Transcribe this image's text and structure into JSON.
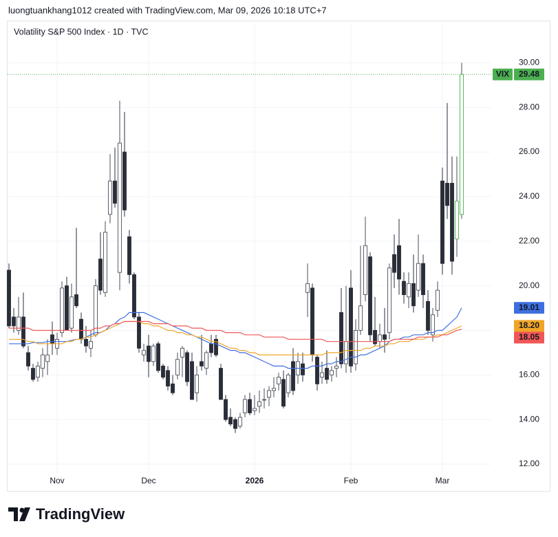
{
  "header": {
    "attribution": "luongtuankhang1012 created with TradingView.com, Mar 09, 2026 10:18 UTC+7"
  },
  "chart_data": {
    "type": "candlestick",
    "title": "Volatility S&P 500 Index · 1D · TVC",
    "categories": [
      null,
      null,
      null,
      null,
      null,
      null,
      null,
      null,
      null,
      null,
      "Nov",
      null,
      null,
      null,
      null,
      null,
      null,
      null,
      null,
      null,
      null,
      null,
      null,
      null,
      null,
      null,
      null,
      null,
      null,
      "Dec",
      null,
      null,
      null,
      null,
      null,
      null,
      null,
      null,
      null,
      null,
      null,
      null,
      null,
      null,
      null,
      null,
      null,
      null,
      null,
      null,
      null,
      "2026",
      null,
      null,
      null,
      null,
      null,
      null,
      null,
      null,
      null,
      null,
      null,
      null,
      null,
      null,
      null,
      null,
      null,
      null,
      null,
      "Feb",
      null,
      null,
      null,
      null,
      null,
      null,
      null,
      null,
      null,
      null,
      null,
      null,
      null,
      null,
      null,
      null,
      null,
      null,
      "Mar",
      null,
      null,
      null,
      null
    ],
    "series": [
      {
        "name": "VIX",
        "up_color": "#ffffff",
        "up_stroke": "#4a4e59",
        "down_color": "#2a2e39",
        "color": "#4caf50",
        "open": [
          20.7,
          18.6,
          18.0,
          18.6,
          17.0,
          16.3,
          15.9,
          16.3,
          16.6,
          17.8,
          17.2,
          17.9,
          20.0,
          18.1,
          19.6,
          18.5,
          17.6,
          17.2,
          17.8,
          21.2,
          19.7,
          23.2,
          24.7,
          20.6,
          26.0,
          22.2,
          20.5,
          18.6,
          16.9,
          17.3,
          16.6,
          17.4,
          16.4,
          16.2,
          15.6,
          16.0,
          16.8,
          17.0,
          16.6,
          15.2,
          16.6,
          16.3,
          17.4,
          17.6,
          16.3,
          14.9,
          14.1,
          14.0,
          13.7,
          14.3,
          14.9,
          14.4,
          14.6,
          14.9,
          15.0,
          15.3,
          15.6,
          15.8,
          15.2,
          16.6,
          16.0,
          16.5,
          19.7,
          19.9,
          16.8,
          15.9,
          16.3,
          16.0,
          16.3,
          18.8,
          16.5,
          19.9,
          16.5,
          18.0,
          19.6,
          21.3,
          18.0,
          17.5,
          17.8,
          17.9,
          21.4,
          21.8,
          20.2,
          19.5,
          20.1,
          19.8,
          21.0,
          19.3,
          17.8,
          18.9,
          24.7,
          24.6,
          24.6,
          22.1,
          23.2
        ],
        "high": [
          21.0,
          19.0,
          19.5,
          19.7,
          17.3,
          16.5,
          16.6,
          17.2,
          17.6,
          18.4,
          17.9,
          20.2,
          20.4,
          20.1,
          22.6,
          18.8,
          18.2,
          18.0,
          20.3,
          22.4,
          22.9,
          25.9,
          26.2,
          28.3,
          27.8,
          22.5,
          20.6,
          18.8,
          17.4,
          17.8,
          17.4,
          17.5,
          16.5,
          16.4,
          16.0,
          17.0,
          17.3,
          17.1,
          17.0,
          16.4,
          17.8,
          17.1,
          17.8,
          17.8,
          16.5,
          15.1,
          14.5,
          14.1,
          14.3,
          15.1,
          15.2,
          15.1,
          15.3,
          15.4,
          15.5,
          15.9,
          16.1,
          16.2,
          16.1,
          17.2,
          17.0,
          17.0,
          21.0,
          20.1,
          16.9,
          16.6,
          17.1,
          16.4,
          16.8,
          19.9,
          20.0,
          20.7,
          18.5,
          21.8,
          23.1,
          21.5,
          19.5,
          18.3,
          19.0,
          21.0,
          22.3,
          23.0,
          20.6,
          20.6,
          21.4,
          22.3,
          21.4,
          19.8,
          19.0,
          20.2,
          25.3,
          28.2,
          25.8,
          25.8,
          30.0
        ],
        "low": [
          18.1,
          17.9,
          17.8,
          17.2,
          16.2,
          15.7,
          15.7,
          15.9,
          16.0,
          16.9,
          16.9,
          17.7,
          18.0,
          17.9,
          19.0,
          17.4,
          17.0,
          16.8,
          17.7,
          19.6,
          19.5,
          22.8,
          23.5,
          19.8,
          23.1,
          20.1,
          18.5,
          17.0,
          16.6,
          15.9,
          16.4,
          16.1,
          15.8,
          15.3,
          15.1,
          15.8,
          15.9,
          15.5,
          14.9,
          14.8,
          16.2,
          16.0,
          16.8,
          16.8,
          14.9,
          13.9,
          13.7,
          13.4,
          13.6,
          14.1,
          14.2,
          14.2,
          14.3,
          14.5,
          14.6,
          15.0,
          15.3,
          14.5,
          15.0,
          15.1,
          15.6,
          15.7,
          18.6,
          16.6,
          15.3,
          15.6,
          15.6,
          15.7,
          15.9,
          16.3,
          16.1,
          16.1,
          16.2,
          17.8,
          19.3,
          17.5,
          17.3,
          17.2,
          17.0,
          17.6,
          19.9,
          19.6,
          19.2,
          19.0,
          18.8,
          19.5,
          19.0,
          17.8,
          17.5,
          18.6,
          20.5,
          23.0,
          20.5,
          21.3,
          23.0
        ],
        "close": [
          18.2,
          18.2,
          18.6,
          17.3,
          16.4,
          15.8,
          16.4,
          16.9,
          16.9,
          17.4,
          17.6,
          19.9,
          18.0,
          19.5,
          19.1,
          17.6,
          17.3,
          17.5,
          20.0,
          19.8,
          22.4,
          24.7,
          23.7,
          26.4,
          23.4,
          20.5,
          18.6,
          17.2,
          17.1,
          16.6,
          17.3,
          16.2,
          15.9,
          15.5,
          15.2,
          16.7,
          17.2,
          15.7,
          14.9,
          16.0,
          16.4,
          17.0,
          17.0,
          16.9,
          14.9,
          14.0,
          13.8,
          13.6,
          14.1,
          14.9,
          14.3,
          14.5,
          14.8,
          14.9,
          15.3,
          15.4,
          15.9,
          14.6,
          16.0,
          15.3,
          16.6,
          16.0,
          20.1,
          16.9,
          15.6,
          16.1,
          15.8,
          16.2,
          16.4,
          16.5,
          17.5,
          16.4,
          18.0,
          19.1,
          21.8,
          17.8,
          17.4,
          17.8,
          17.6,
          20.8,
          20.6,
          20.3,
          19.6,
          20.1,
          19.1,
          21.0,
          19.6,
          18.0,
          18.7,
          19.8,
          21.0,
          23.6,
          21.1,
          23.8,
          29.48
        ]
      },
      {
        "color": "#3d6fe0",
        "values": [
          17.4,
          17.4,
          17.4,
          17.4,
          17.4,
          17.45,
          17.45,
          17.45,
          17.5,
          17.5,
          17.5,
          17.5,
          17.5,
          17.55,
          17.6,
          17.6,
          17.7,
          17.8,
          17.9,
          17.9,
          18.0,
          18.2,
          18.3,
          18.5,
          18.6,
          18.8,
          18.8,
          18.8,
          18.8,
          18.7,
          18.6,
          18.5,
          18.4,
          18.3,
          18.2,
          18.1,
          18.0,
          17.9,
          17.8,
          17.7,
          17.6,
          17.5,
          17.4,
          17.4,
          17.3,
          17.2,
          17.1,
          17.1,
          17.0,
          17.0,
          16.9,
          16.8,
          16.7,
          16.6,
          16.5,
          16.4,
          16.4,
          16.4,
          16.3,
          16.3,
          16.3,
          16.3,
          16.3,
          16.4,
          16.4,
          16.4,
          16.5,
          16.5,
          16.6,
          16.6,
          16.7,
          16.8,
          16.8,
          16.9,
          16.9,
          17.0,
          17.1,
          17.2,
          17.3,
          17.5,
          17.6,
          17.6,
          17.7,
          17.7,
          17.8,
          17.8,
          17.8,
          17.9,
          17.9,
          18.0,
          18.0,
          18.2,
          18.4,
          18.6,
          19.01
        ]
      },
      {
        "color": "#f0a526",
        "values": [
          17.6,
          17.6,
          17.6,
          17.6,
          17.5,
          17.5,
          17.4,
          17.4,
          17.4,
          17.4,
          17.4,
          17.4,
          17.5,
          17.5,
          17.6,
          17.6,
          17.7,
          17.7,
          17.8,
          17.9,
          18.0,
          18.1,
          18.2,
          18.3,
          18.4,
          18.4,
          18.4,
          18.4,
          18.3,
          18.3,
          18.2,
          18.2,
          18.1,
          18.0,
          18.0,
          17.9,
          17.9,
          17.8,
          17.8,
          17.7,
          17.7,
          17.6,
          17.5,
          17.5,
          17.4,
          17.3,
          17.2,
          17.2,
          17.1,
          17.1,
          17.0,
          17.0,
          16.9,
          16.9,
          16.9,
          16.9,
          16.9,
          16.9,
          16.9,
          16.9,
          16.9,
          16.9,
          16.9,
          16.9,
          16.9,
          16.9,
          17.0,
          17.0,
          17.0,
          17.0,
          17.1,
          17.1,
          17.1,
          17.1,
          17.2,
          17.2,
          17.3,
          17.3,
          17.3,
          17.4,
          17.4,
          17.5,
          17.5,
          17.5,
          17.6,
          17.6,
          17.6,
          17.7,
          17.7,
          17.8,
          17.8,
          17.9,
          18.0,
          18.1,
          18.2
        ]
      },
      {
        "color": "#f05656",
        "values": [
          18.1,
          18.1,
          18.1,
          18.1,
          18.1,
          18.0,
          18.0,
          18.0,
          18.0,
          18.0,
          18.0,
          18.0,
          18.0,
          18.0,
          18.0,
          18.0,
          18.0,
          18.0,
          18.1,
          18.1,
          18.2,
          18.2,
          18.3,
          18.3,
          18.4,
          18.4,
          18.4,
          18.4,
          18.4,
          18.4,
          18.3,
          18.3,
          18.3,
          18.3,
          18.2,
          18.2,
          18.2,
          18.2,
          18.1,
          18.1,
          18.1,
          18.0,
          18.0,
          18.0,
          18.0,
          17.9,
          17.9,
          17.9,
          17.9,
          17.8,
          17.8,
          17.8,
          17.8,
          17.7,
          17.7,
          17.7,
          17.7,
          17.7,
          17.6,
          17.6,
          17.6,
          17.6,
          17.6,
          17.6,
          17.6,
          17.6,
          17.5,
          17.5,
          17.5,
          17.5,
          17.5,
          17.5,
          17.5,
          17.5,
          17.5,
          17.5,
          17.5,
          17.5,
          17.5,
          17.5,
          17.6,
          17.6,
          17.6,
          17.6,
          17.6,
          17.7,
          17.7,
          17.7,
          17.7,
          17.7,
          17.8,
          17.8,
          17.9,
          18.0,
          18.05
        ]
      }
    ],
    "price_labels": [
      {
        "value": 29.48,
        "label": "29.48",
        "color": "#4caf50"
      },
      {
        "value": 19.01,
        "label": "19.01",
        "color": "#3d6fe0"
      },
      {
        "value": 18.2,
        "label": "18.20",
        "color": "#f0a526"
      },
      {
        "value": 18.05,
        "label": "18.05",
        "color": "#f05656"
      }
    ],
    "ylim": [
      11.6,
      31.8
    ],
    "yticks": [
      {
        "value": 12,
        "label": "12.00"
      },
      {
        "value": 14,
        "label": "14.00"
      },
      {
        "value": 16,
        "label": "16.00"
      },
      {
        "value": 18,
        "label": "18.00"
      },
      {
        "value": 20,
        "label": "20.00"
      },
      {
        "value": 22,
        "label": "22.00"
      },
      {
        "value": 24,
        "label": "24.00"
      },
      {
        "value": 26,
        "label": "26.00"
      },
      {
        "value": 28,
        "label": "28.00"
      },
      {
        "value": 30,
        "label": "30.00"
      }
    ],
    "grid": true
  },
  "footer": {
    "logo": "TradingView"
  }
}
